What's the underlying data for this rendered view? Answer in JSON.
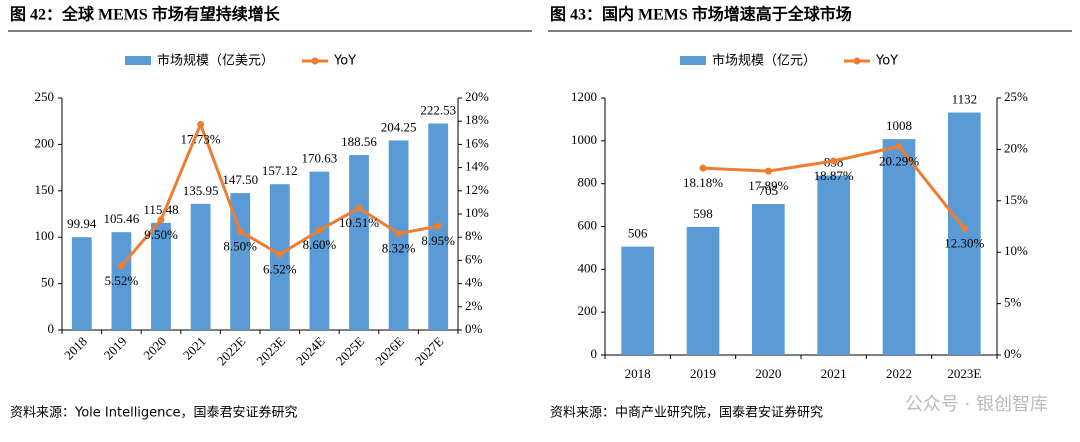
{
  "chart_data": [
    {
      "type": "bar-line",
      "title": "图 42：全球 MEMS 市场有望持续增长",
      "categories": [
        "2018",
        "2019",
        "2020",
        "2021",
        "2022E",
        "2023E",
        "2024E",
        "2025E",
        "2026E",
        "2027E"
      ],
      "series": [
        {
          "name": "市场规模（亿美元）",
          "type": "bar",
          "color": "#5b9bd5",
          "values": [
            99.94,
            105.46,
            115.48,
            135.95,
            147.5,
            157.12,
            170.63,
            188.56,
            204.25,
            222.53
          ],
          "value_labels": [
            "99.94",
            "105.46",
            "115.48",
            "135.95",
            "147.50",
            "157.12",
            "170.63",
            "188.56",
            "204.25",
            "222.53"
          ]
        },
        {
          "name": "YoY",
          "type": "line",
          "axis": "y2",
          "color": "#ed7d31",
          "values": [
            null,
            5.52,
            9.5,
            17.73,
            8.5,
            6.52,
            8.6,
            10.51,
            8.32,
            8.95
          ],
          "value_labels": [
            null,
            "5.52%",
            "9.50%",
            "17.73%",
            "8.50%",
            "6.52%",
            "8.60%",
            "10.51%",
            "8.32%",
            "8.95%"
          ]
        }
      ],
      "ylim": [
        0,
        250
      ],
      "yticks": [
        0,
        50,
        100,
        150,
        200,
        250
      ],
      "y2lim": [
        0,
        20
      ],
      "y2ticks": [
        {
          "value": 0,
          "label": "0%"
        },
        {
          "value": 2,
          "label": "2%"
        },
        {
          "value": 4,
          "label": "4%"
        },
        {
          "value": 6,
          "label": "6%"
        },
        {
          "value": 8,
          "label": "8%"
        },
        {
          "value": 10,
          "label": "10%"
        },
        {
          "value": 12,
          "label": "12%"
        },
        {
          "value": 14,
          "label": "14%"
        },
        {
          "value": 16,
          "label": "16%"
        },
        {
          "value": 18,
          "label": "18%"
        },
        {
          "value": 20,
          "label": "20%"
        }
      ],
      "source": "资料来源：Yole Intelligence，国泰君安证券研究"
    },
    {
      "type": "bar-line",
      "title": "图 43：国内 MEMS 市场增速高于全球市场",
      "categories": [
        "2018",
        "2019",
        "2020",
        "2021",
        "2022",
        "2023E"
      ],
      "series": [
        {
          "name": "市场规模（亿元）",
          "type": "bar",
          "color": "#5b9bd5",
          "values": [
            506,
            598,
            705,
            838,
            1008,
            1132
          ]
        },
        {
          "name": "YoY",
          "type": "line",
          "axis": "y2",
          "color": "#ed7d31",
          "values": [
            null,
            18.18,
            17.89,
            18.87,
            20.29,
            12.3
          ],
          "value_labels": [
            null,
            "18.18%",
            "17.89%",
            "18.87%",
            "20.29%",
            "12.30%"
          ]
        }
      ],
      "ylim": [
        0,
        1200
      ],
      "yticks": [
        0,
        200,
        400,
        600,
        800,
        1000,
        1200
      ],
      "y2lim": [
        0,
        25
      ],
      "y2ticks": [
        {
          "value": 0,
          "label": "0%"
        },
        {
          "value": 5,
          "label": "5%"
        },
        {
          "value": 10,
          "label": "10%"
        },
        {
          "value": 15,
          "label": "15%"
        },
        {
          "value": 20,
          "label": "20%"
        },
        {
          "value": 25,
          "label": "25%"
        }
      ],
      "source": "资料来源：中商产业研究院，国泰君安证券研究",
      "watermark": "公众号 · 银创智库"
    }
  ]
}
